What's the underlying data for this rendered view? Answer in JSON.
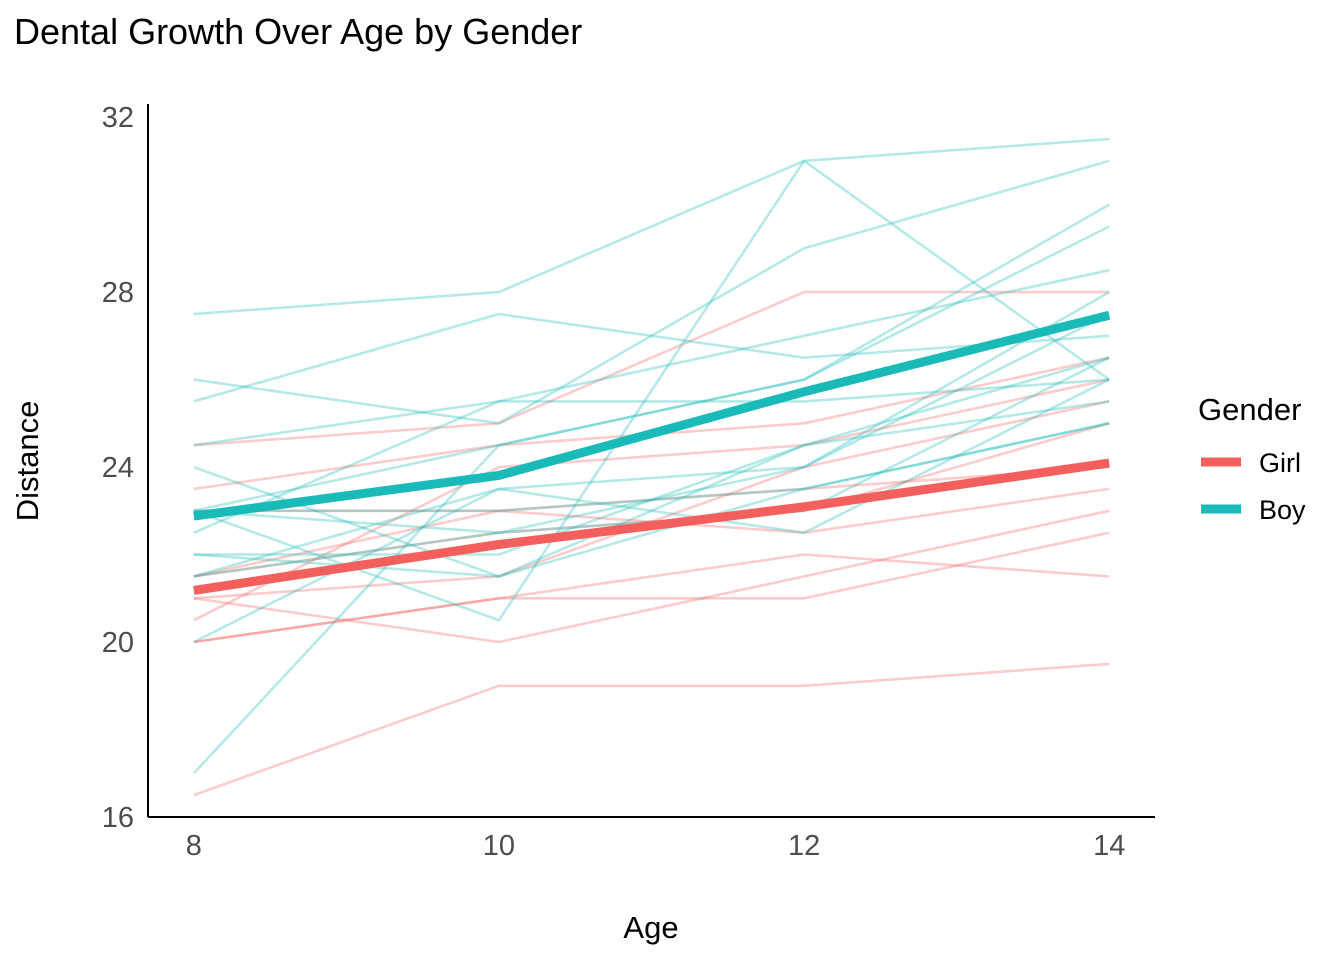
{
  "chart_data": {
    "type": "line",
    "title": "Dental Growth Over Age by Gender",
    "xlabel": "Age",
    "ylabel": "Distance",
    "x": [
      8,
      10,
      12,
      14
    ],
    "xticks": [
      8,
      10,
      12,
      14
    ],
    "yticks": [
      16,
      20,
      24,
      28,
      32
    ],
    "xlim": [
      7.7,
      14.3
    ],
    "ylim": [
      16,
      32.3
    ],
    "grid": false,
    "legend": {
      "title": "Gender",
      "placement": "right",
      "entries": [
        {
          "name": "Girl",
          "color": "#F25F5C"
        },
        {
          "name": "Boy",
          "color": "#1ABAB9"
        }
      ]
    },
    "series": [
      {
        "name": "Girl",
        "color": "#F25F5C",
        "values": [
          21.18,
          22.23,
          23.09,
          24.09
        ]
      },
      {
        "name": "Boy",
        "color": "#1ABAB9",
        "values": [
          22.88,
          23.81,
          25.72,
          27.47
        ]
      }
    ],
    "individuals": {
      "Girl": [
        [
          21.0,
          20.0,
          21.5,
          23.0
        ],
        [
          21.0,
          21.5,
          24.0,
          25.5
        ],
        [
          20.5,
          24.0,
          24.5,
          26.0
        ],
        [
          23.5,
          24.5,
          25.0,
          26.5
        ],
        [
          21.5,
          23.0,
          22.5,
          23.5
        ],
        [
          20.0,
          21.0,
          21.0,
          22.5
        ],
        [
          21.5,
          22.5,
          23.0,
          25.0
        ],
        [
          23.0,
          23.0,
          23.5,
          24.0
        ],
        [
          20.0,
          21.0,
          22.0,
          21.5
        ],
        [
          16.5,
          19.0,
          19.0,
          19.5
        ],
        [
          24.5,
          25.0,
          28.0,
          28.0
        ]
      ],
      "Boy": [
        [
          26.0,
          25.0,
          29.0,
          31.0
        ],
        [
          21.5,
          22.5,
          23.0,
          26.5
        ],
        [
          23.0,
          22.5,
          24.0,
          27.5
        ],
        [
          25.5,
          27.5,
          26.5,
          27.0
        ],
        [
          20.0,
          23.5,
          22.5,
          26.0
        ],
        [
          24.5,
          25.5,
          27.0,
          28.5
        ],
        [
          22.0,
          22.0,
          24.5,
          26.5
        ],
        [
          24.0,
          21.5,
          24.5,
          25.5
        ],
        [
          23.0,
          20.5,
          31.0,
          26.0
        ],
        [
          27.5,
          28.0,
          31.0,
          31.5
        ],
        [
          23.0,
          23.0,
          23.5,
          25.0
        ],
        [
          21.5,
          23.5,
          24.0,
          28.0
        ],
        [
          17.0,
          24.5,
          26.0,
          29.5
        ],
        [
          22.5,
          25.5,
          25.5,
          26.0
        ],
        [
          23.0,
          24.5,
          26.0,
          30.0
        ],
        [
          22.0,
          21.5,
          23.5,
          25.0
        ]
      ]
    }
  }
}
